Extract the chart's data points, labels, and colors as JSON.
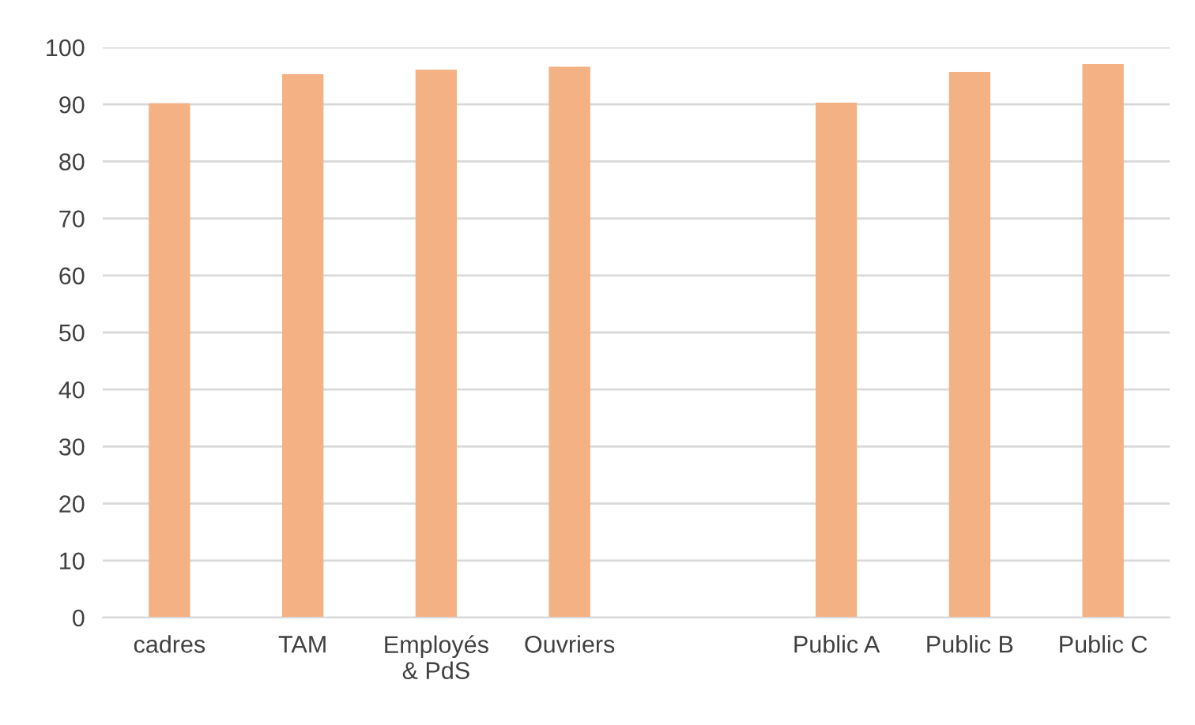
{
  "chart_data": {
    "type": "bar",
    "categories": [
      "cadres",
      "TAM",
      "Employés\n& PdS",
      "Ouvriers",
      null,
      "Public A",
      "Public B",
      "Public C"
    ],
    "values": [
      90.2,
      95.3,
      96.1,
      96.6,
      null,
      90.3,
      95.7,
      97.1
    ],
    "color": "#f4b183",
    "ylim": [
      0,
      100
    ],
    "yticks": [
      0,
      10,
      20,
      30,
      40,
      50,
      60,
      70,
      80,
      90,
      100
    ],
    "grid": "y"
  }
}
